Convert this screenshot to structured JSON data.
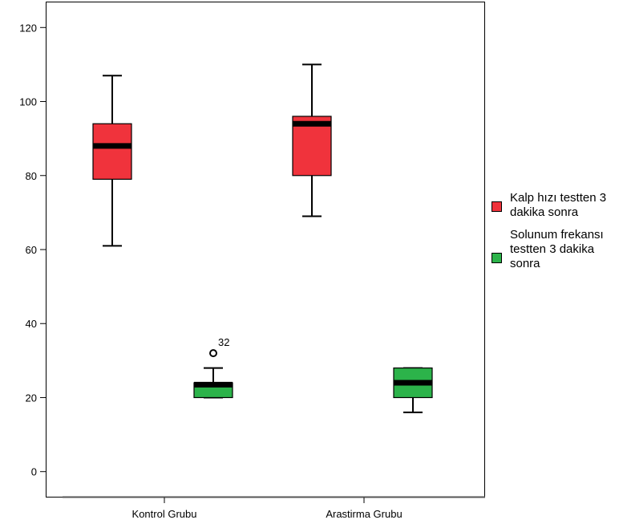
{
  "chart_data": {
    "type": "boxplot",
    "title": "",
    "xlabel": "",
    "ylabel": "",
    "ylim": [
      -7,
      127
    ],
    "yticks": [
      0,
      20,
      40,
      60,
      80,
      100,
      120
    ],
    "categories": [
      "Kontrol Grubu",
      "Arastirma Grubu"
    ],
    "series": [
      {
        "name": "Kalp hızı testten 3 dakika sonra",
        "color": "#f0333c",
        "boxes": [
          {
            "min": 61,
            "q1": 79,
            "median": 88,
            "q3": 94,
            "max": 107,
            "outliers": []
          },
          {
            "min": 69,
            "q1": 80,
            "median": 94,
            "q3": 96,
            "max": 110,
            "outliers": []
          }
        ]
      },
      {
        "name": "Solunum frekansı testten 3 dakika sonra",
        "color": "#2cb34a",
        "boxes": [
          {
            "min": 20,
            "q1": 20,
            "median": 23.5,
            "q3": 24,
            "max": 28,
            "outliers": [
              {
                "value": 32,
                "label": "32"
              }
            ]
          },
          {
            "min": 16,
            "q1": 20,
            "median": 24,
            "q3": 28,
            "max": 28,
            "outliers": []
          }
        ]
      }
    ],
    "legend": {
      "placement": "right",
      "lines": [
        [
          "Kalp hızı testten 3",
          "dakika sonra"
        ],
        [
          "Solunum frekansı",
          "testten 3 dakika",
          "sonra"
        ]
      ]
    },
    "grid": false
  }
}
